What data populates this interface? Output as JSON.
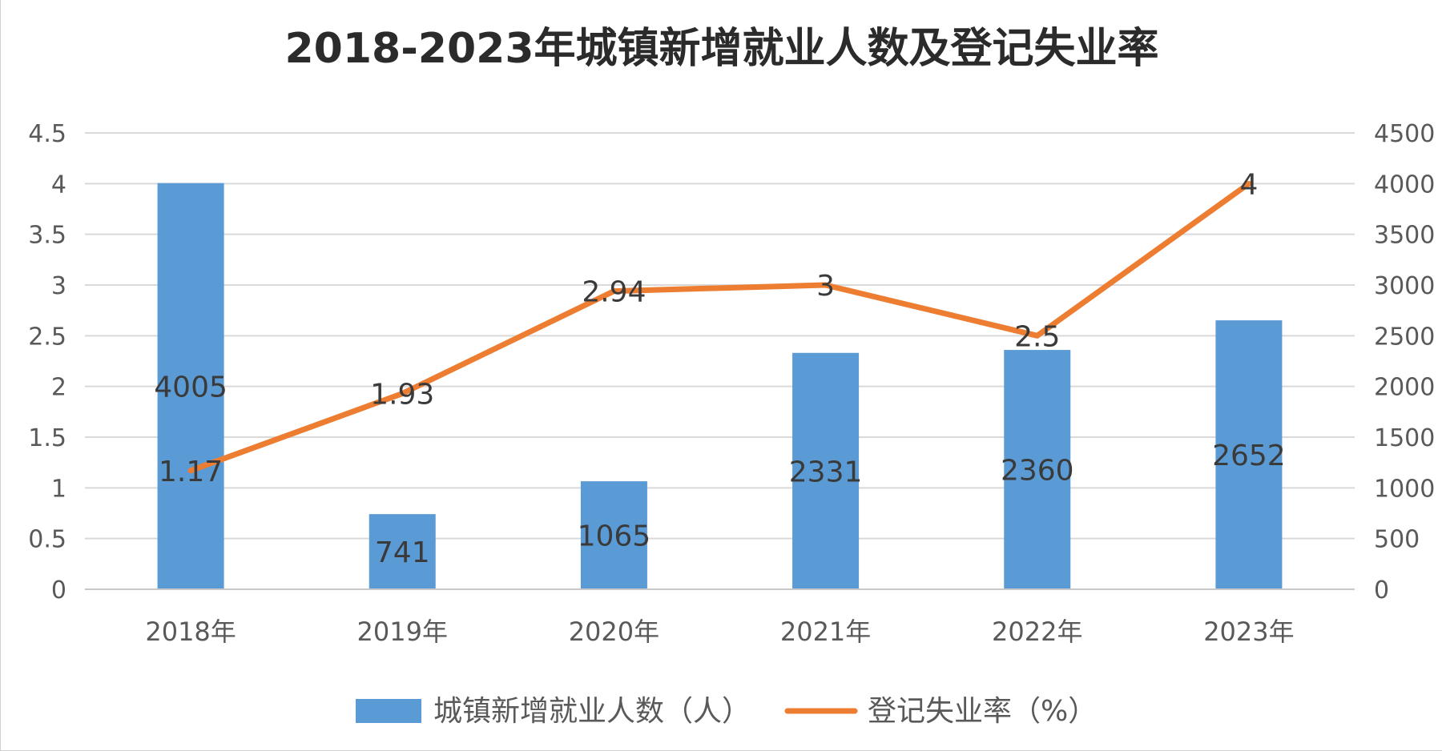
{
  "chart_data": {
    "type": "bar",
    "title": "2018-2023年城镇新增就业人数及登记失业率",
    "categories": [
      "2018年",
      "2019年",
      "2020年",
      "2021年",
      "2022年",
      "2023年"
    ],
    "series": [
      {
        "name": "城镇新增就业人数（人）",
        "type": "bar",
        "axis": "right",
        "color": "#5b9bd5",
        "values": [
          4005,
          741,
          1065,
          2331,
          2360,
          2652
        ]
      },
      {
        "name": "登记失业率（%）",
        "type": "line",
        "axis": "left",
        "color": "#ed7d31",
        "values": [
          1.17,
          1.93,
          2.94,
          3,
          2.5,
          4
        ]
      }
    ],
    "y_left": {
      "range": [
        0,
        4.5
      ],
      "ticks": [
        "0",
        "0.5",
        "1",
        "1.5",
        "2",
        "2.5",
        "3",
        "3.5",
        "4",
        "4.5"
      ]
    },
    "y_right": {
      "range": [
        0,
        4500
      ],
      "ticks": [
        "0",
        "500",
        "1000",
        "1500",
        "2000",
        "2500",
        "3000",
        "3500",
        "4000",
        "4500"
      ]
    },
    "grid": true,
    "legend": "bottom",
    "gridline_color": "#d9d9d9"
  }
}
